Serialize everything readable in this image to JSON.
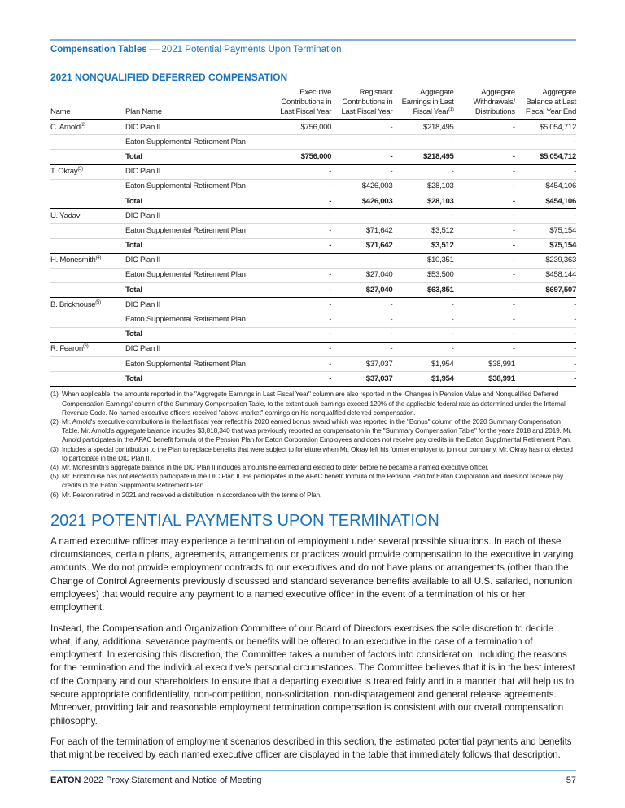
{
  "header": {
    "section": "Compensation Tables",
    "sep": " — ",
    "sub": "2021 Potential Payments Upon Termination"
  },
  "table_title": "2021 NONQUALIFIED DEFERRED COMPENSATION",
  "columns": [
    "Name",
    "Plan Name",
    "Executive Contributions in Last Fiscal Year",
    "Registrant Contributions in Last Fiscal Year",
    "Aggregate Earnings in Last Fiscal Year",
    "Aggregate Withdrawals/ Distributions",
    "Aggregate Balance at Last Fiscal Year End"
  ],
  "col4_sup": "(1)",
  "people": [
    {
      "name": "C. Arnold",
      "sup": "(2)",
      "rows": [
        [
          "DIC Plan II",
          "$756,000",
          "-",
          "$218,495",
          "-",
          "$5,054,712"
        ],
        [
          "Eaton Supplemental Retirement Plan",
          "-",
          "-",
          "-",
          "-",
          "-"
        ],
        [
          "Total",
          "$756,000",
          "-",
          "$218,495",
          "-",
          "$5,054,712"
        ]
      ]
    },
    {
      "name": "T. Okray",
      "sup": "(3)",
      "rows": [
        [
          "DIC Plan II",
          "-",
          "-",
          "-",
          "-",
          "-"
        ],
        [
          "Eaton Supplemental Retirement Plan",
          "-",
          "$426,003",
          "$28,103",
          "-",
          "$454,106"
        ],
        [
          "Total",
          "-",
          "$426,003",
          "$28,103",
          "-",
          "$454,106"
        ]
      ]
    },
    {
      "name": "U. Yadav",
      "sup": "",
      "rows": [
        [
          "DIC Plan II",
          "-",
          "-",
          "-",
          "-",
          "-"
        ],
        [
          "Eaton Supplemental Retirement Plan",
          "-",
          "$71,642",
          "$3,512",
          "-",
          "$75,154"
        ],
        [
          "Total",
          "-",
          "$71,642",
          "$3,512",
          "-",
          "$75,154"
        ]
      ]
    },
    {
      "name": "H. Monesmith",
      "sup": "(4)",
      "rows": [
        [
          "DIC Plan II",
          "-",
          "-",
          "$10,351",
          "-",
          "$239,363"
        ],
        [
          "Eaton Supplemental Retirement Plan",
          "-",
          "$27,040",
          "$53,500",
          "-",
          "$458,144"
        ],
        [
          "Total",
          "-",
          "$27,040",
          "$63,851",
          "-",
          "$697,507"
        ]
      ]
    },
    {
      "name": "B. Brickhouse",
      "sup": "(5)",
      "rows": [
        [
          "DIC Plan II",
          "-",
          "-",
          "-",
          "-",
          "-"
        ],
        [
          "Eaton Supplemental Retirement Plan",
          "-",
          "-",
          "-",
          "-",
          "-"
        ],
        [
          "Total",
          "-",
          "-",
          "-",
          "-",
          "-"
        ]
      ]
    },
    {
      "name": "R. Fearon",
      "sup": "(6)",
      "rows": [
        [
          "DIC Plan II",
          "-",
          "-",
          "-",
          "-",
          "-"
        ],
        [
          "Eaton Supplemental Retirement Plan",
          "-",
          "$37,037",
          "$1,954",
          "$38,991",
          "-"
        ],
        [
          "Total",
          "-",
          "$37,037",
          "$1,954",
          "$38,991",
          "-"
        ]
      ]
    }
  ],
  "footnotes": [
    [
      "(1)",
      "When applicable, the amounts reported in the \"Aggregate Earnings in Last Fiscal Year\" column are also reported in the 'Changes in Pension Value and Nonqualified Deferred Compensation Earnings' column of the Summary Compensation Table, to the extent such earnings exceed 120% of the applicable federal rate as determined under the Internal Revenue Code. No named executive officers received \"above-market\" earnings on his nonqualified deferred compensation."
    ],
    [
      "(2)",
      "Mr. Arnold's executive contributions in the last fiscal year reflect his 2020 earned bonus award which was reported in the \"Bonus\" column of the 2020 Summary Compensation Table.  Mr. Arnold's aggregate balance includes $3,818,340 that was previously reported as compensation in the \"Summary Compensation Table\" for the years 2018 and 2019. Mr. Arnold participates in the AFAC benefit formula of the Pension Plan for Eaton Corporation Employees and does not receive pay credits in the Eaton Supplmental Retirement Plan."
    ],
    [
      "(3)",
      "Includes a special contribution to the Plan to replace benefits that were subject to forfeiture when Mr. Okray left his former employer to join our company.  Mr. Okray has not elected to participate in the DIC Plan II."
    ],
    [
      "(4)",
      "Mr. Monesmith's aggregate balance in the DIC Plan II includes amounts he earned and elected to defer before he became a named executive officer."
    ],
    [
      "(5)",
      "Mr. Brickhouse has not elected to participate in the DIC Plan II.  He participates in the AFAC benefit formula of the Pension Plan for Eaton Corporation and does not receive pay credits in the Eaton Supplmental Retirement Plan."
    ],
    [
      "(6)",
      "Mr. Fearon retired in 2021 and received a distribution in accordance with the terms of Plan."
    ]
  ],
  "heading": "2021 POTENTIAL PAYMENTS UPON TERMINATION",
  "paragraphs": [
    "A named executive officer may experience a termination of employment under several possible situations. In each of these circumstances, certain plans, agreements, arrangements or practices would provide compensation to the executive in varying amounts. We do not provide employment contracts to our executives and do not have plans or arrangements (other than the Change of Control Agreements previously discussed and standard severance benefits available to all U.S. salaried, nonunion employees) that would require any payment to a named executive officer in the event of a termination of his or her employment.",
    "Instead, the Compensation and Organization Committee of our Board of Directors exercises the sole discretion to decide what, if any, additional severance payments or benefits will be offered to an executive in the case of a termination of employment. In exercising this discretion, the Committee takes a number of factors into consideration, including the reasons for the termination and the individual executive’s personal circumstances. The Committee believes that it is in the best interest of the Company and our shareholders to ensure that a departing executive is treated fairly and in a manner that will help us to secure appropriate confidentiality, non-competition, non-solicitation, non-disparagement and general release agreements. Moreover, providing fair and reasonable employment termination compensation is consistent with our overall compensation philosophy.",
    "For each of the termination of employment scenarios described in this section, the estimated potential payments and benefits that might be received by each named executive officer are displayed in the table that immediately follows that description."
  ],
  "footer": {
    "brand": "EATON",
    "text": " 2022 Proxy Statement and Notice of Meeting",
    "page": "57"
  }
}
